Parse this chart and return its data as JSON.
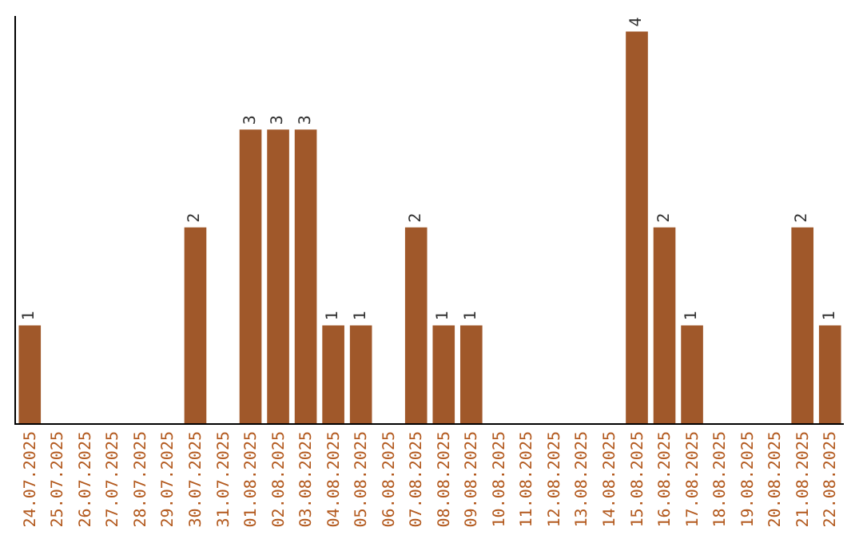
{
  "chart_data": {
    "type": "bar",
    "categories": [
      "24.07.2025",
      "25.07.2025",
      "26.07.2025",
      "27.07.2025",
      "28.07.2025",
      "29.07.2025",
      "30.07.2025",
      "31.07.2025",
      "01.08.2025",
      "02.08.2025",
      "03.08.2025",
      "04.08.2025",
      "05.08.2025",
      "06.08.2025",
      "07.08.2025",
      "08.08.2025",
      "09.08.2025",
      "10.08.2025",
      "11.08.2025",
      "12.08.2025",
      "13.08.2025",
      "14.08.2025",
      "15.08.2025",
      "16.08.2025",
      "17.08.2025",
      "18.08.2025",
      "19.08.2025",
      "20.08.2025",
      "21.08.2025",
      "22.08.2025"
    ],
    "values": [
      1,
      0,
      0,
      0,
      0,
      0,
      2,
      0,
      3,
      3,
      3,
      1,
      1,
      0,
      2,
      1,
      1,
      0,
      0,
      0,
      0,
      0,
      4,
      2,
      1,
      0,
      0,
      0,
      2,
      1
    ],
    "value_labels": [
      "1",
      null,
      null,
      null,
      null,
      null,
      "2",
      null,
      "3",
      "3",
      "3",
      "1",
      "1",
      null,
      "2",
      "1",
      "1",
      null,
      null,
      null,
      null,
      null,
      "4",
      "2",
      "1",
      null,
      null,
      null,
      "2",
      "1"
    ],
    "color": "#a0582a",
    "legend": false,
    "tick_labels": "x"
  }
}
